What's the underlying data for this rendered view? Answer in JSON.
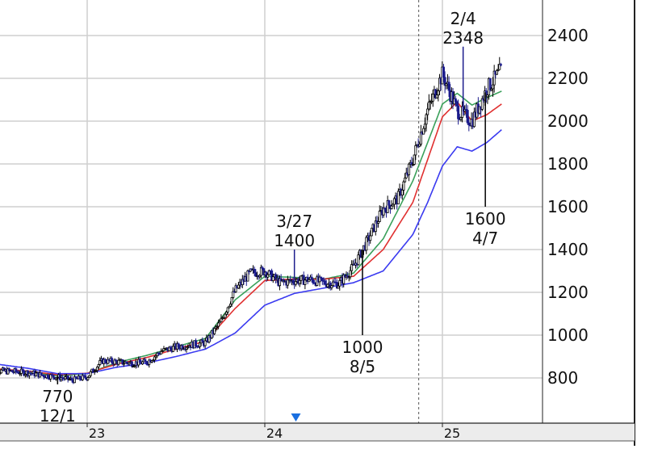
{
  "chart_data": {
    "type": "line",
    "title": "",
    "xlabel": "",
    "ylabel": "",
    "y_range": [
      700,
      2550
    ],
    "y_ticks": [
      800,
      1000,
      1200,
      1400,
      1600,
      1800,
      2000,
      2200,
      2400
    ],
    "y_axis_position": "right",
    "x_axis_labels": [
      {
        "label": "23",
        "t": 12
      },
      {
        "label": "24",
        "t": 24
      },
      {
        "label": "25",
        "t": 36
      }
    ],
    "grid": true,
    "event_marker": {
      "t": 34.4,
      "style": "dashed"
    },
    "marker_triangle": {
      "t": 26.1,
      "color": "#1a6fe0"
    },
    "price_series": {
      "name": "",
      "color": "#000000",
      "t": [
        5.3,
        6,
        7,
        8,
        9,
        10,
        11,
        12,
        13,
        14,
        15,
        16,
        17,
        18,
        19,
        20,
        21,
        22,
        23,
        24,
        25,
        26,
        27,
        28,
        29,
        30,
        31,
        32,
        33,
        34,
        35,
        36,
        37,
        38,
        39,
        40
      ],
      "values": [
        832,
        833,
        830,
        825,
        813,
        805,
        790,
        805,
        880,
        875,
        870,
        872,
        925,
        945,
        955,
        965,
        1060,
        1210,
        1290,
        1300,
        1245,
        1255,
        1260,
        1245,
        1240,
        1320,
        1450,
        1590,
        1640,
        1820,
        2050,
        2220,
        2050,
        2000,
        2150,
        2240
      ]
    },
    "ma_series": [
      {
        "name": "",
        "color": "#3aa05a",
        "t": [
          5.3,
          8,
          10,
          12,
          14,
          16,
          18,
          20,
          22,
          24,
          26,
          28,
          30,
          32,
          34,
          35,
          36,
          37,
          38,
          39,
          40
        ],
        "values": [
          842,
          828,
          810,
          820,
          872,
          905,
          945,
          985,
          1165,
          1275,
          1270,
          1262,
          1290,
          1450,
          1720,
          1900,
          2080,
          2130,
          2075,
          2110,
          2140
        ]
      },
      {
        "name": "",
        "color": "#e03030",
        "t": [
          5.3,
          8,
          10,
          12,
          14,
          16,
          18,
          20,
          22,
          24,
          26,
          28,
          30,
          32,
          34,
          35,
          36,
          37,
          38,
          39,
          40
        ],
        "values": [
          845,
          832,
          815,
          822,
          865,
          895,
          935,
          972,
          1125,
          1255,
          1262,
          1262,
          1275,
          1400,
          1620,
          1820,
          2020,
          2090,
          2000,
          2030,
          2080
        ]
      },
      {
        "name": "",
        "color": "#3a3af0",
        "t": [
          5.3,
          8,
          10,
          12,
          14,
          16,
          18,
          20,
          22,
          24,
          26,
          28,
          30,
          32,
          34,
          35,
          36,
          37,
          38,
          39,
          40
        ],
        "values": [
          870,
          845,
          820,
          820,
          850,
          870,
          900,
          935,
          1010,
          1140,
          1195,
          1220,
          1245,
          1300,
          1470,
          1620,
          1790,
          1880,
          1860,
          1900,
          1960
        ]
      }
    ],
    "annotations": [
      {
        "date": "12/1",
        "value": "770",
        "t": 10.0,
        "y": 770,
        "text_pos": "below"
      },
      {
        "date": "3/27",
        "value": "1400",
        "t": 26.0,
        "y": 1400,
        "text_pos": "above"
      },
      {
        "date": "8/5",
        "value": "1000",
        "t": 30.6,
        "y": 1000,
        "text_pos": "below"
      },
      {
        "date": "2/4",
        "value": "2348",
        "t": 37.4,
        "y": 2348,
        "text_pos": "above"
      },
      {
        "date": "4/7",
        "value": "1600",
        "t": 38.9,
        "y": 1600,
        "text_pos": "below"
      }
    ]
  }
}
